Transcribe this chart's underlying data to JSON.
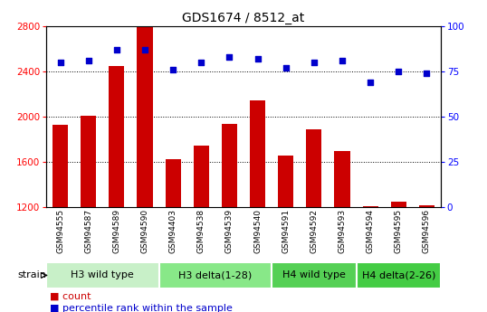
{
  "title": "GDS1674 / 8512_at",
  "samples": [
    "GSM94555",
    "GSM94587",
    "GSM94589",
    "GSM94590",
    "GSM94403",
    "GSM94538",
    "GSM94539",
    "GSM94540",
    "GSM94591",
    "GSM94592",
    "GSM94593",
    "GSM94594",
    "GSM94595",
    "GSM94596"
  ],
  "counts": [
    1930,
    2010,
    2450,
    2800,
    1630,
    1750,
    1940,
    2150,
    1660,
    1890,
    1700,
    1210,
    1250,
    1220
  ],
  "percentiles": [
    80,
    81,
    87,
    87,
    76,
    80,
    83,
    82,
    77,
    80,
    81,
    69,
    75,
    74
  ],
  "groups": [
    {
      "label": "H3 wild type",
      "start": 0,
      "end": 4,
      "color": "#c8f0c8"
    },
    {
      "label": "H3 delta(1-28)",
      "start": 4,
      "end": 8,
      "color": "#88e888"
    },
    {
      "label": "H4 wild type",
      "start": 8,
      "end": 11,
      "color": "#55d055"
    },
    {
      "label": "H4 delta(2-26)",
      "start": 11,
      "end": 14,
      "color": "#44cc44"
    }
  ],
  "ylim_left": [
    1200,
    2800
  ],
  "ylim_right": [
    0,
    100
  ],
  "yticks_left": [
    1200,
    1600,
    2000,
    2400,
    2800
  ],
  "yticks_right": [
    0,
    25,
    50,
    75,
    100
  ],
  "grid_yticks": [
    1600,
    2000,
    2400
  ],
  "bar_color": "#cc0000",
  "dot_color": "#0000cc",
  "title_fontsize": 10,
  "xtick_fontsize": 6.5,
  "ytick_fontsize": 7.5,
  "group_label_fontsize": 8,
  "legend_fontsize": 8,
  "bar_width": 0.55
}
